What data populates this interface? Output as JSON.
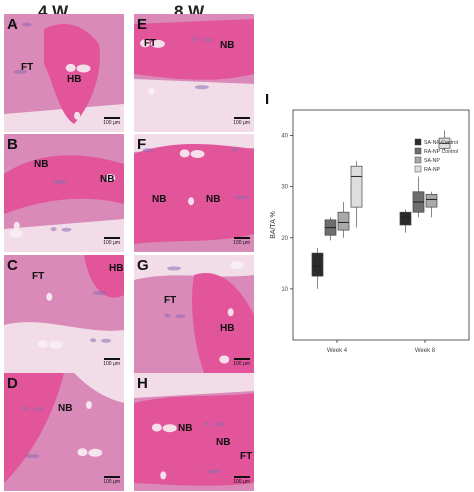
{
  "headers": {
    "left": "4 W",
    "right": "8 W"
  },
  "scale_bar_text": "100 μm",
  "panels": [
    {
      "letter": "A",
      "tissue": [
        {
          "text": "FT",
          "x": 17,
          "y": 48
        },
        {
          "text": "HB",
          "x": 63,
          "y": 60
        }
      ]
    },
    {
      "letter": "B",
      "tissue": [
        {
          "text": "NB",
          "x": 30,
          "y": 25
        },
        {
          "text": "NB",
          "x": 96,
          "y": 40
        }
      ]
    },
    {
      "letter": "C",
      "tissue": [
        {
          "text": "FT",
          "x": 28,
          "y": 16
        },
        {
          "text": "HB",
          "x": 105,
          "y": 8
        }
      ]
    },
    {
      "letter": "D",
      "tissue": [
        {
          "text": "NB",
          "x": 54,
          "y": 30
        }
      ]
    },
    {
      "letter": "E",
      "tissue": [
        {
          "text": "FT",
          "x": 10,
          "y": 24
        },
        {
          "text": "NB",
          "x": 86,
          "y": 26
        }
      ]
    },
    {
      "letter": "F",
      "tissue": [
        {
          "text": "NB",
          "x": 18,
          "y": 60
        },
        {
          "text": "NB",
          "x": 72,
          "y": 60
        }
      ]
    },
    {
      "letter": "G",
      "tissue": [
        {
          "text": "FT",
          "x": 30,
          "y": 40
        },
        {
          "text": "HB",
          "x": 86,
          "y": 68
        }
      ]
    },
    {
      "letter": "H",
      "tissue": [
        {
          "text": "NB",
          "x": 44,
          "y": 50
        },
        {
          "text": "NB",
          "x": 82,
          "y": 64
        },
        {
          "text": "FT",
          "x": 106,
          "y": 78
        }
      ]
    }
  ],
  "chart_data": {
    "type": "box",
    "panel_label": "I",
    "ylabel": "BA/TA %",
    "ylim": [
      0,
      45
    ],
    "yticks": [
      10,
      20,
      30,
      40
    ],
    "categories": [
      "Week 4",
      "Week 8"
    ],
    "legend_position": "top-right",
    "series": [
      {
        "name": "SA-NP Control",
        "color": "#2b2b2b",
        "boxes": [
          {
            "min": 10,
            "q1": 12.5,
            "median": 14.5,
            "q3": 17,
            "max": 18
          },
          {
            "min": 21,
            "q1": 22.5,
            "median": 24,
            "q3": 25,
            "max": 25.5
          }
        ]
      },
      {
        "name": "RA-NP Control",
        "color": "#6e6e6e",
        "boxes": [
          {
            "min": 19.5,
            "q1": 20.5,
            "median": 22,
            "q3": 23.5,
            "max": 24
          },
          {
            "min": 24,
            "q1": 25,
            "median": 27,
            "q3": 29,
            "max": 32
          }
        ]
      },
      {
        "name": "SA-NP",
        "color": "#a9a9a9",
        "boxes": [
          {
            "min": 20,
            "q1": 21.5,
            "median": 23,
            "q3": 25,
            "max": 27
          },
          {
            "min": 24,
            "q1": 26,
            "median": 27.5,
            "q3": 28.5,
            "max": 29
          }
        ]
      },
      {
        "name": "RA-NP",
        "color": "#dedede",
        "boxes": [
          {
            "min": 22,
            "q1": 26,
            "median": 32,
            "q3": 34,
            "max": 35
          },
          {
            "min": 37,
            "q1": 37.5,
            "median": 38.5,
            "q3": 39.5,
            "max": 41
          }
        ]
      }
    ]
  }
}
